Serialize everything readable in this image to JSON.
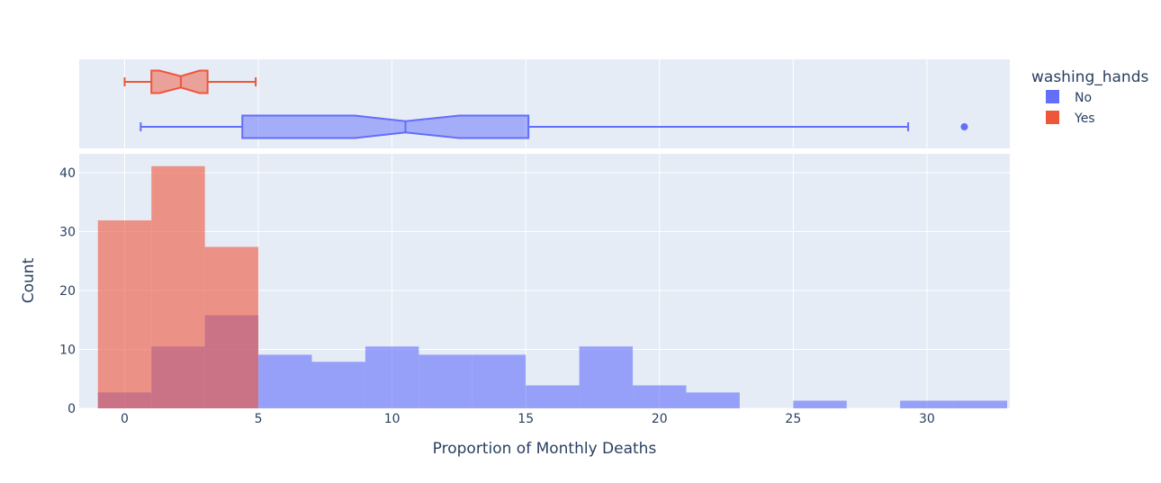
{
  "chart_data": {
    "type": "histogram_with_marginal_box",
    "xlabel": "Proportion of Monthly Deaths",
    "ylabel": "Count",
    "xlim": [
      -1.7,
      33.1
    ],
    "ylim": [
      0,
      43.2
    ],
    "x_ticks": [
      0,
      5,
      10,
      15,
      20,
      25,
      30
    ],
    "y_ticks": [
      0,
      10,
      20,
      30,
      40
    ],
    "bin_edges": [
      -1,
      1,
      3,
      5,
      7,
      9,
      11,
      13,
      15,
      17,
      19,
      21,
      23,
      25,
      27,
      29,
      31,
      33
    ],
    "legend": {
      "title": "washing_hands",
      "position": "right"
    },
    "series": [
      {
        "name": "No",
        "color": "#636efa",
        "counts": [
          2.7,
          10.5,
          15.8,
          9.1,
          7.9,
          10.5,
          9.1,
          9.1,
          3.9,
          10.5,
          3.9,
          2.7,
          0,
          1.3,
          0,
          1.3,
          1.3
        ],
        "box": {
          "lower_fence": 0.6,
          "q1": 4.4,
          "median": 10.5,
          "q3": 15.1,
          "notch_low": 8.6,
          "notch_high": 12.5,
          "upper_fence": 29.3,
          "outliers": [
            31.4
          ]
        }
      },
      {
        "name": "Yes",
        "color": "#ef553b",
        "counts": [
          31.9,
          41.1,
          27.4,
          0,
          0,
          0,
          0,
          0,
          0,
          0,
          0,
          0,
          0,
          0,
          0,
          0,
          0
        ],
        "box": {
          "lower_fence": 0,
          "q1": 1.0,
          "median": 2.1,
          "q3": 3.1,
          "notch_low": 1.3,
          "notch_high": 2.8,
          "upper_fence": 4.9,
          "outliers": []
        }
      }
    ]
  }
}
